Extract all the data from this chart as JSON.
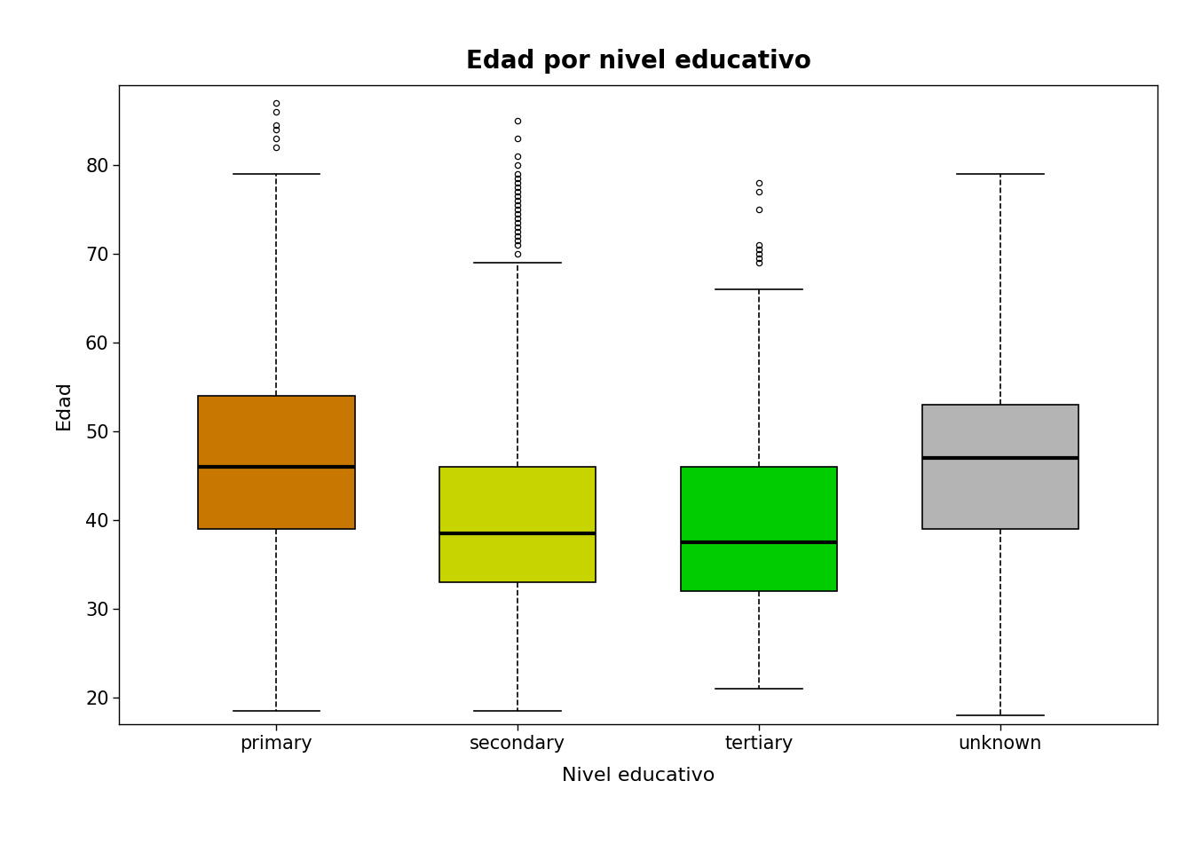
{
  "title": "Edad por nivel educativo",
  "xlabel": "Nivel educativo",
  "ylabel": "Edad",
  "categories": [
    "primary",
    "secondary",
    "tertiary",
    "unknown"
  ],
  "box_colors": [
    "#C87800",
    "#C8D400",
    "#00CC00",
    "#B4B4B4"
  ],
  "boxes": [
    {
      "q1": 39,
      "median": 46,
      "q3": 54,
      "whisker_low": 18.5,
      "whisker_high": 79,
      "outliers": [
        82,
        83,
        84,
        84.5,
        86,
        87
      ]
    },
    {
      "q1": 33,
      "median": 38.5,
      "q3": 46,
      "whisker_low": 18.5,
      "whisker_high": 69,
      "outliers": [
        70,
        71,
        71.5,
        72,
        72.5,
        73,
        73.5,
        74,
        74.5,
        75,
        75.5,
        76,
        76.5,
        77,
        77.5,
        78,
        78.5,
        79,
        80,
        81,
        83,
        85
      ]
    },
    {
      "q1": 32,
      "median": 37.5,
      "q3": 46,
      "whisker_low": 21,
      "whisker_high": 66,
      "outliers": [
        69,
        69.5,
        70,
        70.5,
        71,
        75,
        77,
        78
      ]
    },
    {
      "q1": 39,
      "median": 47,
      "q3": 53,
      "whisker_low": 18,
      "whisker_high": 79,
      "outliers": []
    }
  ],
  "ylim": [
    17,
    89
  ],
  "yticks": [
    20,
    30,
    40,
    50,
    60,
    70,
    80
  ],
  "background_color": "#FFFFFF",
  "box_width": 0.65,
  "linewidth": 1.2,
  "median_linewidth": 3.0,
  "title_fontsize": 20,
  "label_fontsize": 16,
  "tick_fontsize": 15
}
